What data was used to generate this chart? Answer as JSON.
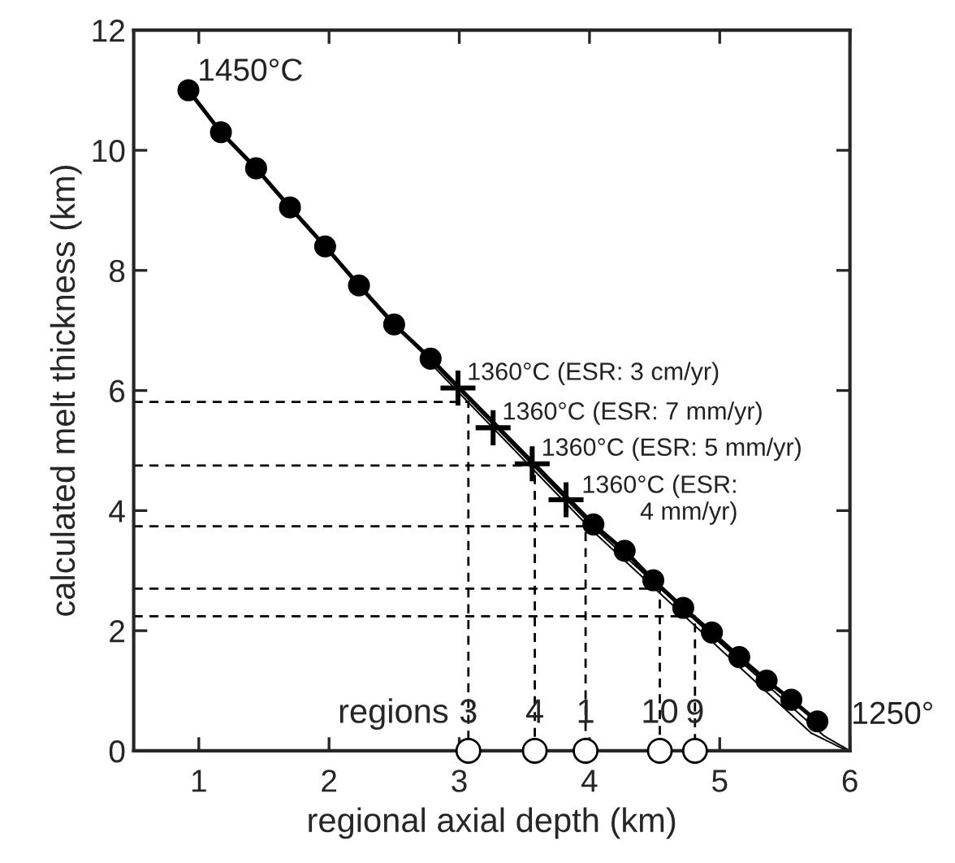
{
  "chart_data": {
    "type": "line",
    "xlabel": "regional axial depth (km)",
    "ylabel": "calculated melt thickness (km)",
    "xlim": [
      0.5,
      6
    ],
    "ylim": [
      0,
      12
    ],
    "xticks": [
      1,
      2,
      3,
      4,
      5,
      6
    ],
    "yticks": [
      0,
      2,
      4,
      6,
      8,
      10,
      12
    ],
    "grid": false,
    "legend": false,
    "series": [
      {
        "type": "line",
        "color": "#000000",
        "marker": "circle",
        "line_style": "solid",
        "x": [
          0.92,
          1.17,
          1.44,
          1.7,
          1.97,
          2.23,
          2.5,
          2.78,
          4.03,
          4.27,
          4.49,
          4.72,
          4.94,
          5.15,
          5.36,
          5.55,
          5.75
        ],
        "values": [
          11.0,
          10.3,
          9.7,
          9.05,
          8.4,
          7.75,
          7.1,
          6.53,
          3.77,
          3.33,
          2.84,
          2.38,
          1.97,
          1.56,
          1.17,
          0.85,
          0.49
        ]
      },
      {
        "type": "scatter",
        "color": "#000000",
        "marker": "cross",
        "x": [
          2.99,
          3.26,
          3.56,
          3.82
        ],
        "values": [
          6.04,
          5.38,
          4.78,
          4.18
        ]
      },
      {
        "type": "line",
        "color": "#000000",
        "marker": "none",
        "line_style": "solid",
        "x": [
          2.78,
          4.03,
          5.0,
          5.8,
          6.0
        ],
        "values": [
          6.5,
          3.72,
          1.8,
          0.25,
          0
        ]
      },
      {
        "type": "line",
        "color": "#000000",
        "marker": "none",
        "line_style": "solid",
        "x": [
          2.78,
          4.03,
          5.0,
          5.7,
          5.95,
          6.0
        ],
        "values": [
          6.45,
          3.65,
          1.7,
          0.3,
          0.03,
          0
        ]
      },
      {
        "type": "line",
        "color": "#000000",
        "marker": "none",
        "line_style": "dashed",
        "x": [
          0.5,
          3.07,
          3.07
        ],
        "values": [
          5.81,
          5.81,
          0
        ]
      },
      {
        "type": "line",
        "color": "#000000",
        "marker": "none",
        "line_style": "dashed",
        "x": [
          0.5,
          3.58,
          3.58
        ],
        "values": [
          4.75,
          4.75,
          0
        ]
      },
      {
        "type": "line",
        "color": "#000000",
        "marker": "none",
        "line_style": "dashed",
        "x": [
          0.5,
          3.97,
          3.97
        ],
        "values": [
          3.74,
          3.74,
          0
        ]
      },
      {
        "type": "line",
        "color": "#000000",
        "marker": "none",
        "line_style": "dashed",
        "x": [
          0.5,
          4.54,
          4.54
        ],
        "values": [
          2.7,
          2.7,
          0
        ]
      },
      {
        "type": "line",
        "color": "#000000",
        "marker": "none",
        "line_style": "dashed",
        "x": [
          0.5,
          4.81,
          4.81
        ],
        "values": [
          2.24,
          2.24,
          0
        ]
      },
      {
        "type": "scatter",
        "color": "#ffffff",
        "marker": "circle",
        "x": [
          3.07,
          3.58,
          3.97,
          4.54,
          4.81
        ],
        "values": [
          0,
          0,
          0,
          0,
          0
        ]
      }
    ],
    "annotations": [
      {
        "text": "1450°C",
        "x": 0.92,
        "y": 11.0
      },
      {
        "text": "1360°C (ESR: 3 cm/yr)",
        "x": 2.99,
        "y": 6.04
      },
      {
        "text": "1360°C (ESR: 7 mm/yr)",
        "x": 3.26,
        "y": 5.38
      },
      {
        "text": "1360°C (ESR: 5 mm/yr)",
        "x": 3.56,
        "y": 4.78
      },
      {
        "text": "1360°C (ESR:\n4 mm/yr)",
        "x": 3.82,
        "y": 4.18
      },
      {
        "text": "1250°",
        "x": 5.75,
        "y": 0.49
      },
      "regions",
      {
        "text": "3",
        "x": 3.07,
        "y": 0
      },
      {
        "text": "4",
        "x": 3.58,
        "y": 0
      },
      {
        "text": "1",
        "x": 3.97,
        "y": 0
      },
      {
        "text": "10",
        "x": 4.54,
        "y": 0
      },
      {
        "text": "9",
        "x": 4.81,
        "y": 0
      }
    ]
  }
}
